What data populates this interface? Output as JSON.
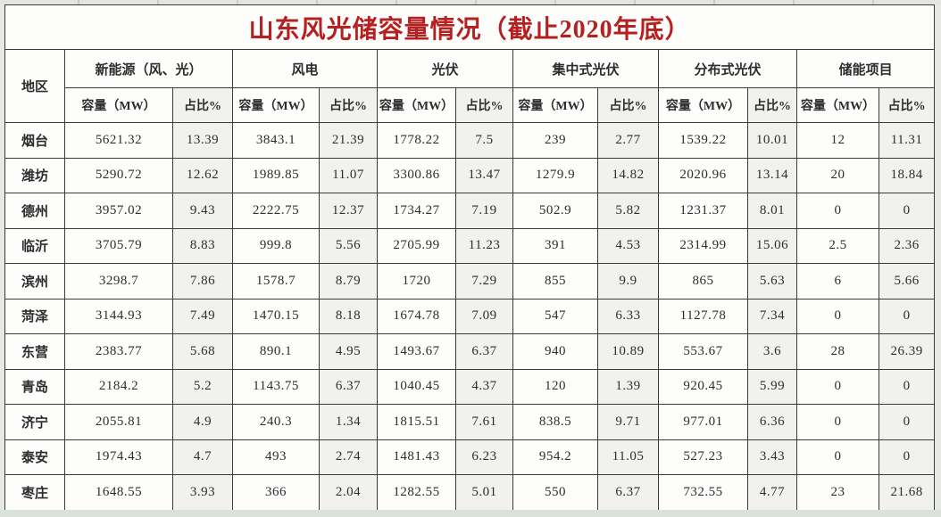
{
  "title": "山东风光储容量情况（截止2020年底）",
  "colors": {
    "title_red": "#b42120",
    "share_column_bg": "#f1f1ee",
    "border": "#3b3b3b",
    "bottom_strip": "#dae2d9"
  },
  "table": {
    "region_header": "地区",
    "groups": [
      {
        "label": "新能源（风、光）"
      },
      {
        "label": "风电"
      },
      {
        "label": "光伏"
      },
      {
        "label": "集中式光伏"
      },
      {
        "label": "分布式光伏"
      },
      {
        "label": "储能项目"
      }
    ],
    "sub_headers": {
      "capacity": "容量（MW）",
      "share": "占比%"
    },
    "rows": [
      {
        "region": "烟台",
        "values": [
          "5621.32",
          "13.39",
          "3843.1",
          "21.39",
          "1778.22",
          "7.5",
          "239",
          "2.77",
          "1539.22",
          "10.01",
          "12",
          "11.31"
        ]
      },
      {
        "region": "潍坊",
        "values": [
          "5290.72",
          "12.62",
          "1989.85",
          "11.07",
          "3300.86",
          "13.47",
          "1279.9",
          "14.82",
          "2020.96",
          "13.14",
          "20",
          "18.84"
        ]
      },
      {
        "region": "德州",
        "values": [
          "3957.02",
          "9.43",
          "2222.75",
          "12.37",
          "1734.27",
          "7.19",
          "502.9",
          "5.82",
          "1231.37",
          "8.01",
          "0",
          "0"
        ]
      },
      {
        "region": "临沂",
        "values": [
          "3705.79",
          "8.83",
          "999.8",
          "5.56",
          "2705.99",
          "11.23",
          "391",
          "4.53",
          "2314.99",
          "15.06",
          "2.5",
          "2.36"
        ]
      },
      {
        "region": "滨州",
        "values": [
          "3298.7",
          "7.86",
          "1578.7",
          "8.79",
          "1720",
          "7.29",
          "855",
          "9.9",
          "865",
          "5.63",
          "6",
          "5.66"
        ]
      },
      {
        "region": "菏泽",
        "values": [
          "3144.93",
          "7.49",
          "1470.15",
          "8.18",
          "1674.78",
          "7.09",
          "547",
          "6.33",
          "1127.78",
          "7.34",
          "0",
          "0"
        ]
      },
      {
        "region": "东营",
        "values": [
          "2383.77",
          "5.68",
          "890.1",
          "4.95",
          "1493.67",
          "6.37",
          "940",
          "10.89",
          "553.67",
          "3.6",
          "28",
          "26.39"
        ]
      },
      {
        "region": "青岛",
        "values": [
          "2184.2",
          "5.2",
          "1143.75",
          "6.37",
          "1040.45",
          "4.37",
          "120",
          "1.39",
          "920.45",
          "5.99",
          "0",
          "0"
        ]
      },
      {
        "region": "济宁",
        "values": [
          "2055.81",
          "4.9",
          "240.3",
          "1.34",
          "1815.51",
          "7.61",
          "838.5",
          "9.71",
          "977.01",
          "6.36",
          "0",
          "0"
        ]
      },
      {
        "region": "泰安",
        "values": [
          "1974.43",
          "4.7",
          "493",
          "2.74",
          "1481.43",
          "6.23",
          "954.2",
          "11.05",
          "527.23",
          "3.43",
          "0",
          "0"
        ]
      },
      {
        "region": "枣庄",
        "values": [
          "1648.55",
          "3.93",
          "366",
          "2.04",
          "1282.55",
          "5.01",
          "550",
          "6.37",
          "732.55",
          "4.77",
          "23",
          "21.68"
        ]
      }
    ]
  }
}
